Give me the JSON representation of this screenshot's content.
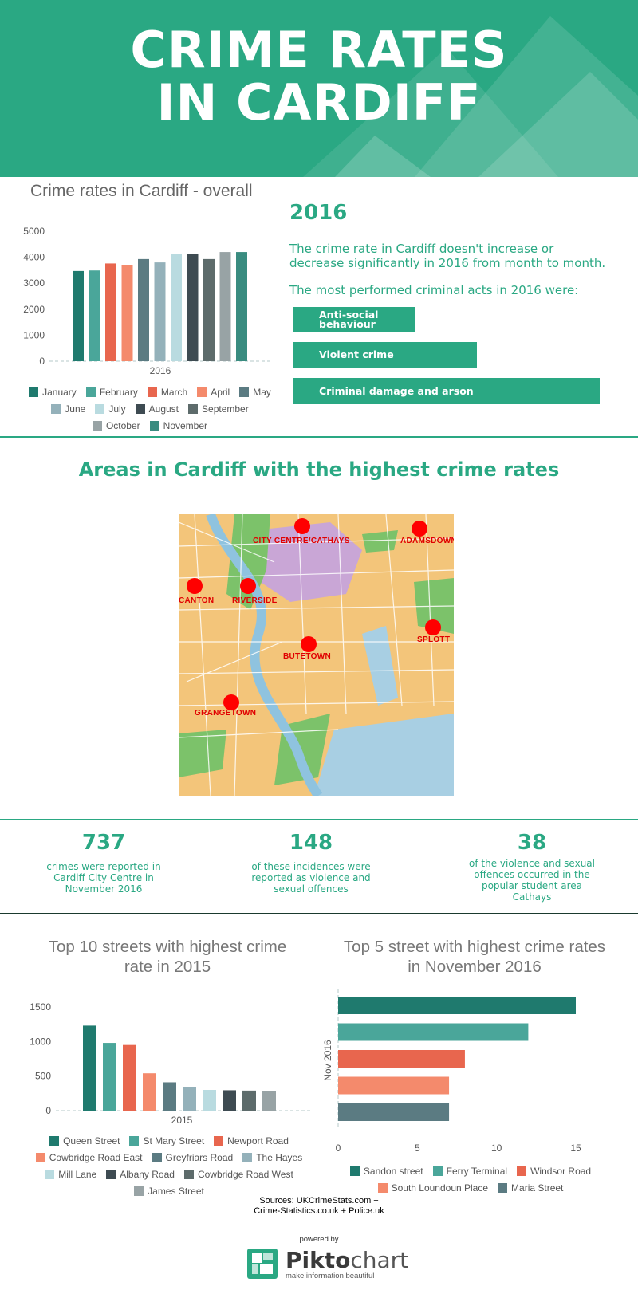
{
  "header": {
    "title_line1": "CRIME RATES",
    "title_line2": "IN CARDIFF"
  },
  "overall": {
    "title": "Crime rates in Cardiff - overall"
  },
  "summary": {
    "year": "2016",
    "text1": "The crime rate in Cardiff doesn't increase or decrease significantly in 2016 from month to month.",
    "text2": "The most performed criminal acts in 2016 were:",
    "acts": [
      {
        "label_line1": "Anti-social",
        "label_line2": "behaviour",
        "relative_share": 0.4
      },
      {
        "label_line1": "Violent crime",
        "label_line2": "",
        "relative_share": 0.58
      },
      {
        "label_line1": "Criminal damage and arson",
        "label_line2": "",
        "relative_share": 1.0
      }
    ]
  },
  "areas": {
    "title": "Areas in Cardiff with the highest crime rates",
    "labels": [
      "CITY CENTRE/CATHAYS",
      "ADAMSDOWN",
      "CANTON",
      "RIVERSIDE",
      "SPLOTT",
      "BUTETOWN",
      "GRANGETOWN"
    ]
  },
  "stats": [
    {
      "number": "737",
      "text_lines": [
        "crimes were reported in",
        "Cardiff City Centre in",
        "November 2016"
      ]
    },
    {
      "number": "148",
      "text_lines": [
        "of these incidences were",
        "reported as violence and",
        "sexual offences"
      ]
    },
    {
      "number": "38",
      "text_lines": [
        "of the violence and sexual",
        "offences occurred in the",
        "popular student area",
        "Cathays"
      ]
    }
  ],
  "streets2015": {
    "title_line1": "Top 10 streets with highest crime",
    "title_line2": "rate in 2015"
  },
  "streetsNov2016": {
    "title_line1": "Top 5 street with highest crime rates",
    "title_line2": "in November 2016"
  },
  "sources": {
    "line1": "Sources: UKCrimeStats.com +",
    "line2": "Crime-Statistics.co.uk + Police.uk"
  },
  "footer": {
    "powered": "powered by",
    "logo_bold": "Pikto",
    "logo_light": "chart",
    "tagline": "make information beautiful"
  },
  "chart_data": [
    {
      "type": "bar",
      "title": "Crime rates in Cardiff - overall",
      "categories": [
        "2016"
      ],
      "series": [
        {
          "name": "January",
          "values": [
            3470
          ],
          "color": "#1f7a6e"
        },
        {
          "name": "February",
          "values": [
            3490
          ],
          "color": "#4aa69a"
        },
        {
          "name": "March",
          "values": [
            3760
          ],
          "color": "#e8664e"
        },
        {
          "name": "April",
          "values": [
            3700
          ],
          "color": "#f48a6c"
        },
        {
          "name": "May",
          "values": [
            3930
          ],
          "color": "#5b7b82"
        },
        {
          "name": "June",
          "values": [
            3800
          ],
          "color": "#94b1ba"
        },
        {
          "name": "July",
          "values": [
            4110
          ],
          "color": "#b9dbe0"
        },
        {
          "name": "August",
          "values": [
            4130
          ],
          "color": "#3e4b52"
        },
        {
          "name": "September",
          "values": [
            3930
          ],
          "color": "#5d6b6b"
        },
        {
          "name": "October",
          "values": [
            4200
          ],
          "color": "#98a3a5"
        },
        {
          "name": "November",
          "values": [
            4200
          ],
          "color": "#3a8c80"
        }
      ],
      "ylim": [
        0,
        5000
      ],
      "yticks": [
        0,
        1000,
        2000,
        3000,
        4000,
        5000
      ],
      "grid": false,
      "legend": "bottom"
    },
    {
      "type": "bar",
      "title": "Top 10 streets with highest crime rate in 2015",
      "categories": [
        "2015"
      ],
      "series": [
        {
          "name": "Queen Street",
          "values": [
            1230
          ],
          "color": "#1f7a6e"
        },
        {
          "name": "St Mary Street",
          "values": [
            980
          ],
          "color": "#4aa69a"
        },
        {
          "name": "Newport Road",
          "values": [
            950
          ],
          "color": "#e8664e"
        },
        {
          "name": "Cowbridge Road East",
          "values": [
            540
          ],
          "color": "#f48a6c"
        },
        {
          "name": "Greyfriars Road",
          "values": [
            410
          ],
          "color": "#5b7b82"
        },
        {
          "name": "The Hayes",
          "values": [
            340
          ],
          "color": "#94b1ba"
        },
        {
          "name": "Mill Lane",
          "values": [
            300
          ],
          "color": "#b9dbe0"
        },
        {
          "name": "Albany Road",
          "values": [
            295
          ],
          "color": "#3e4b52"
        },
        {
          "name": "Cowbridge Road West",
          "values": [
            290
          ],
          "color": "#5d6b6b"
        },
        {
          "name": "James Street",
          "values": [
            285
          ],
          "color": "#98a3a5"
        }
      ],
      "ylim": [
        0,
        1500
      ],
      "yticks": [
        0,
        500,
        1000,
        1500
      ],
      "grid": false,
      "legend": "bottom"
    },
    {
      "type": "bar",
      "orientation": "horizontal",
      "title": "Top 5 street with highest crime rates in November 2016",
      "categories": [
        "Nov 2016"
      ],
      "series": [
        {
          "name": "Sandon street",
          "values": [
            15
          ],
          "color": "#1f7a6e"
        },
        {
          "name": "Ferry Terminal",
          "values": [
            12
          ],
          "color": "#4aa69a"
        },
        {
          "name": "Windsor Road",
          "values": [
            8
          ],
          "color": "#e8664e"
        },
        {
          "name": "South Loundoun Place",
          "values": [
            7
          ],
          "color": "#f48a6c"
        },
        {
          "name": "Maria Street",
          "values": [
            7
          ],
          "color": "#5b7b82"
        }
      ],
      "xlim": [
        0,
        15
      ],
      "xticks": [
        0,
        5,
        10,
        15
      ],
      "grid": false,
      "legend": "bottom"
    }
  ]
}
